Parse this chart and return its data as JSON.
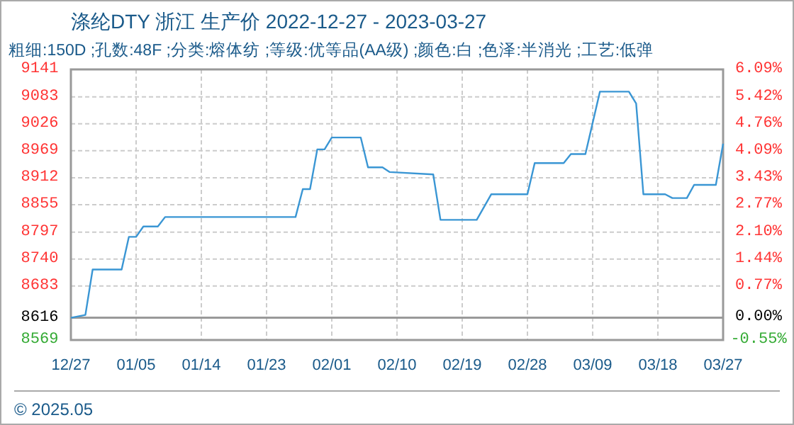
{
  "chart_data": {
    "type": "line",
    "title": "涤纶DTY 浙江 生产价 2022-12-27 - 2023-03-27",
    "subtitle": "粗细:150D ;孔数:48F ;分类:熔体纺 ;等级:优等品(AA级) ;颜色:白 ;色泽:半消光 ;工艺:低弹",
    "x": [
      "2022-12-27",
      "2022-12-29",
      "2022-12-30",
      "2023-01-03",
      "2023-01-04",
      "2023-01-05",
      "2023-01-06",
      "2023-01-08",
      "2023-01-09",
      "2023-01-27",
      "2023-01-28",
      "2023-01-29",
      "2023-01-30",
      "2023-01-31",
      "2023-02-01",
      "2023-02-05",
      "2023-02-06",
      "2023-02-08",
      "2023-02-09",
      "2023-02-15",
      "2023-02-16",
      "2023-02-21",
      "2023-02-23",
      "2023-02-28",
      "2023-03-01",
      "2023-03-05",
      "2023-03-06",
      "2023-03-08",
      "2023-03-10",
      "2023-03-14",
      "2023-03-15",
      "2023-03-16",
      "2023-03-19",
      "2023-03-20",
      "2023-03-22",
      "2023-03-23",
      "2023-03-26",
      "2023-03-27"
    ],
    "series": [
      {
        "color": "#3a96d4",
        "values": [
          8616,
          8622,
          8718,
          8718,
          8787,
          8787,
          8809,
          8809,
          8829,
          8829,
          8888,
          8888,
          8972,
          8972,
          8997,
          8997,
          8934,
          8934,
          8924,
          8919,
          8823,
          8823,
          8877,
          8877,
          8943,
          8943,
          8962,
          8962,
          9094,
          9094,
          9069,
          8877,
          8877,
          8869,
          8869,
          8897,
          8897,
          8984
        ]
      }
    ],
    "xlim": [
      "2022-12-27",
      "2023-03-27"
    ],
    "xticks": [
      {
        "value": "2022-12-27",
        "label": "12/27"
      },
      {
        "value": "2023-01-05",
        "label": "01/05"
      },
      {
        "value": "2023-01-14",
        "label": "01/14"
      },
      {
        "value": "2023-01-23",
        "label": "01/23"
      },
      {
        "value": "2023-02-01",
        "label": "02/01"
      },
      {
        "value": "2023-02-10",
        "label": "02/10"
      },
      {
        "value": "2023-02-19",
        "label": "02/19"
      },
      {
        "value": "2023-02-28",
        "label": "02/28"
      },
      {
        "value": "2023-03-09",
        "label": "03/09"
      },
      {
        "value": "2023-03-18",
        "label": "03/18"
      },
      {
        "value": "2023-03-27",
        "label": "03/27"
      }
    ],
    "ylim": [
      8569,
      9141
    ],
    "yticks": [
      8569,
      8616,
      8683,
      8740,
      8797,
      8855,
      8912,
      8969,
      9026,
      9083,
      9141
    ],
    "y2lim": [
      -0.55,
      6.09
    ],
    "y2ticks": [
      {
        "value": -0.55,
        "label": "-0.55%"
      },
      {
        "value": 0,
        "label": "0.00%"
      },
      {
        "value": 0.77,
        "label": "0.77%"
      },
      {
        "value": 1.44,
        "label": "1.44%"
      },
      {
        "value": 2.1,
        "label": "2.10%"
      },
      {
        "value": 2.77,
        "label": "2.77%"
      },
      {
        "value": 3.43,
        "label": "3.43%"
      },
      {
        "value": 4.09,
        "label": "4.09%"
      },
      {
        "value": 4.76,
        "label": "4.76%"
      },
      {
        "value": 5.42,
        "label": "5.42%"
      },
      {
        "value": 6.09,
        "label": "6.09%"
      }
    ],
    "ref_lines": [
      {
        "axis": "y",
        "value": 8616,
        "color": "#999999"
      }
    ],
    "grid": true,
    "marker": "none",
    "line_style": "solid",
    "annotations": [
      "© 2025.05"
    ]
  }
}
